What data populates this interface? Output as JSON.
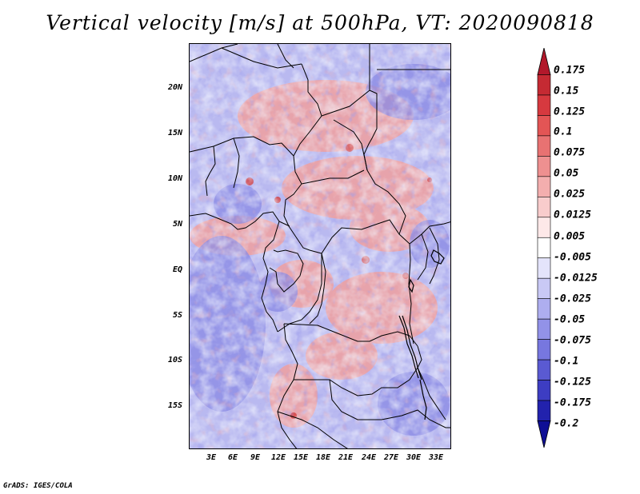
{
  "title": "Vertical velocity [m/s] at 500hPa, VT: 2020090818",
  "credit": "GrADS: IGES/COLA",
  "map": {
    "region": "Central Africa",
    "lon_range": [
      0,
      36
    ],
    "lat_range": [
      -20,
      25
    ],
    "lat_labels": [
      "20N",
      "15N",
      "10N",
      "5N",
      "EQ",
      "5S",
      "10S",
      "15S"
    ],
    "lon_labels": [
      "3E",
      "6E",
      "9E",
      "12E",
      "15E",
      "18E",
      "21E",
      "24E",
      "27E",
      "30E",
      "33E"
    ],
    "field": "vertical velocity",
    "units": "m/s",
    "level": "500hPa"
  },
  "colorbar": {
    "labels": [
      "0.175",
      "0.15",
      "0.125",
      "0.1",
      "0.075",
      "0.05",
      "0.025",
      "0.0125",
      "0.005",
      "-0.005",
      "-0.0125",
      "-0.025",
      "-0.05",
      "-0.075",
      "-0.1",
      "-0.125",
      "-0.175",
      "-0.2"
    ],
    "colors": [
      "#b2182b",
      "#c52a33",
      "#d6393f",
      "#e35555",
      "#e87272",
      "#ee9090",
      "#f3aeae",
      "#f8cccc",
      "#fde8e8",
      "#ffffff",
      "#e4e4fb",
      "#c9c9f5",
      "#aeaeef",
      "#9292e8",
      "#7777df",
      "#5a5ad2",
      "#3d3dc2",
      "#2222ad",
      "#0f0f95"
    ]
  }
}
